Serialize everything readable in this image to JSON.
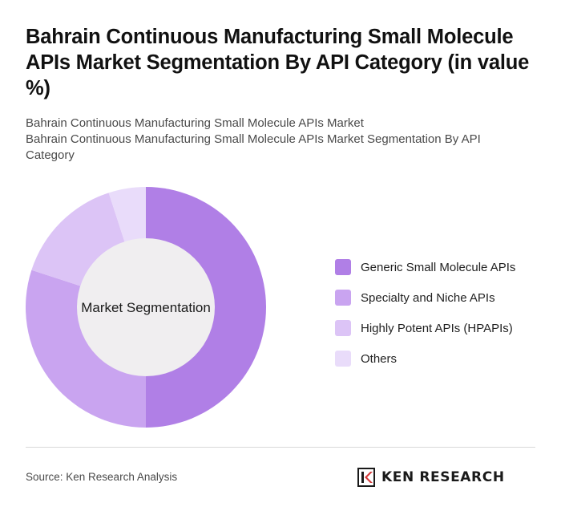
{
  "title": "Bahrain Continuous Manufacturing Small Molecule APIs Market Segmentation By API Category (in value %)",
  "subtitle_line1": "Bahrain Continuous Manufacturing Small Molecule APIs Market",
  "subtitle_line2": "Bahrain Continuous Manufacturing Small Molecule APIs Market Segmentation By API Category",
  "chart_data": {
    "type": "pie",
    "variant": "donut",
    "center_label": "Market Segmentation",
    "categories": [
      "Generic Small Molecule APIs",
      "Specialty and Niche APIs",
      "Highly Potent APIs (HPAPIs)",
      "Others"
    ],
    "values": [
      50,
      30,
      15,
      5
    ],
    "colors": [
      "#b07fe6",
      "#c9a4f0",
      "#dcc4f6",
      "#e9dcfa"
    ],
    "center_color": "#f0eef0",
    "legend_position": "right"
  },
  "footer": {
    "source": "Source: Ken Research Analysis",
    "logo_text": "KEN RESEARCH"
  }
}
